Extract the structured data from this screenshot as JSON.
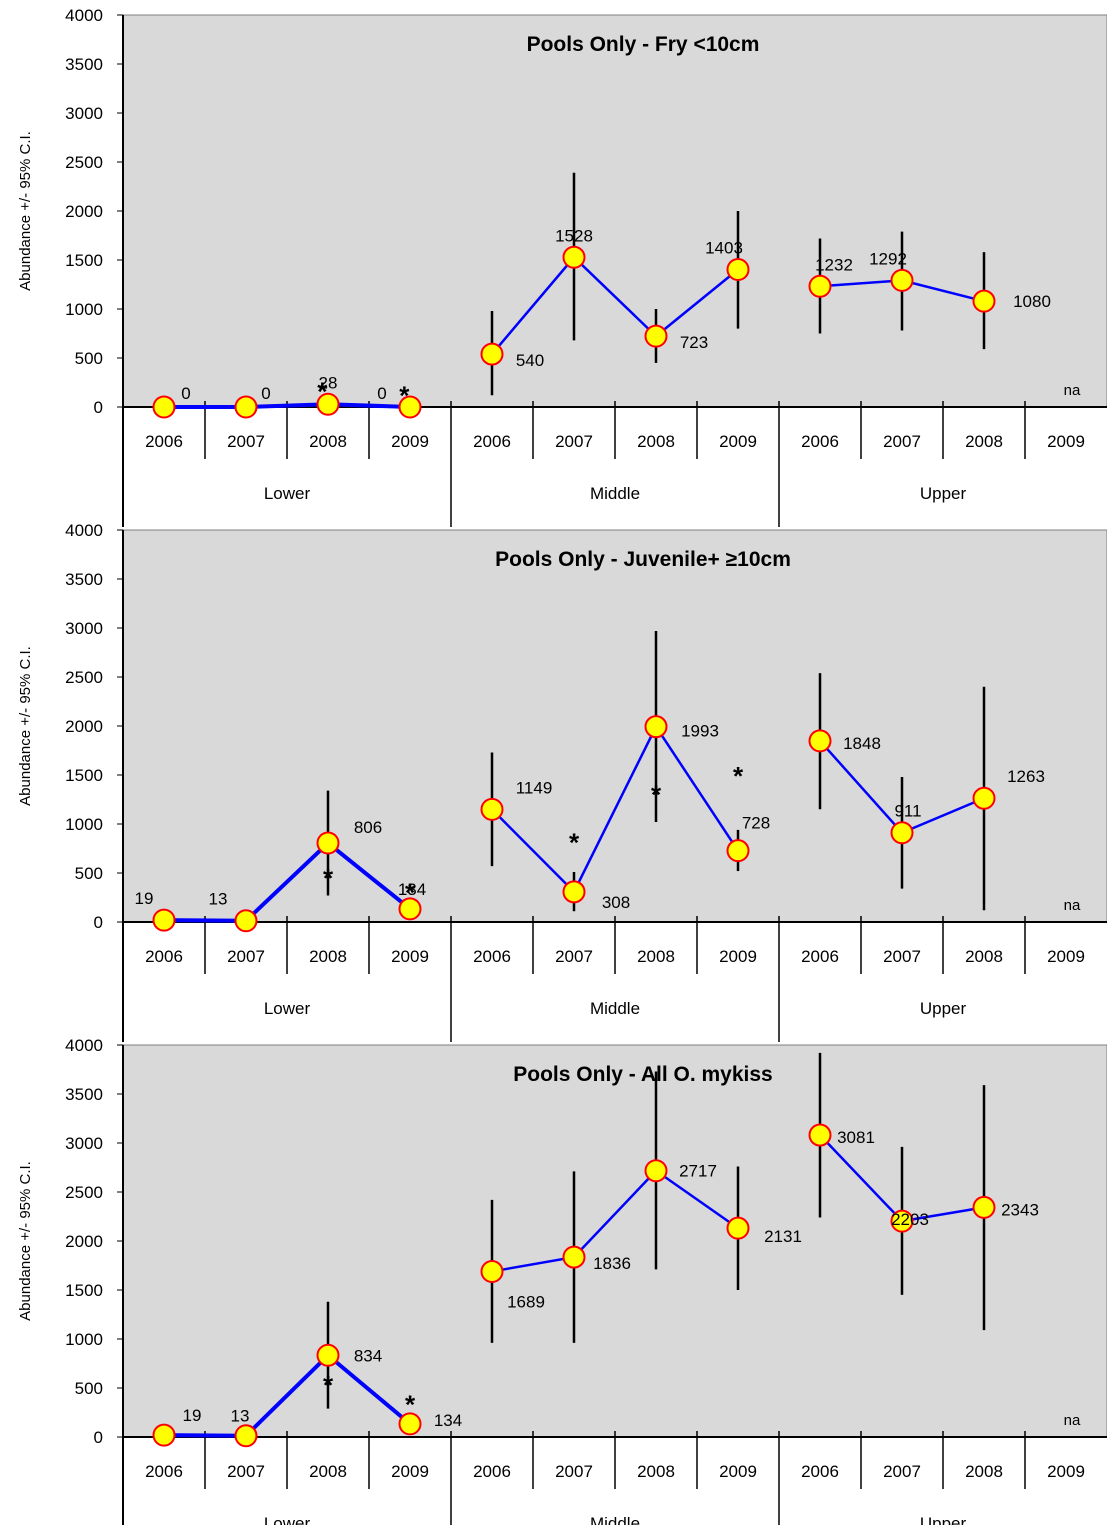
{
  "y_axis_label": "Abundance +/- 95% C.I.",
  "y_ticks": [
    "0",
    "500",
    "1000",
    "1500",
    "2000",
    "2500",
    "3000",
    "3500",
    "4000"
  ],
  "colors": {
    "plot_bg": "#d9d9d9",
    "line": "#0000ff",
    "marker_fill": "#ffff00",
    "marker_edge": "#ff0000",
    "asterisk": "#ff0000"
  },
  "chart_data": [
    {
      "type": "line",
      "title": "Pools Only - Fry <10cm",
      "ylabel": "Abundance +/- 95% C.I.",
      "ylim": [
        0,
        4000
      ],
      "grid": false,
      "groups": [
        {
          "name": "Lower",
          "years": [
            "2006",
            "2007",
            "2008",
            "2009"
          ]
        },
        {
          "name": "Middle",
          "years": [
            "2006",
            "2007",
            "2008",
            "2009"
          ]
        },
        {
          "name": "Upper",
          "years": [
            "2006",
            "2007",
            "2008",
            "2009"
          ]
        }
      ],
      "points": [
        {
          "group": "Lower",
          "year": "2006",
          "value": 0,
          "label": "0",
          "ci": null
        },
        {
          "group": "Lower",
          "year": "2007",
          "value": 0,
          "label": "0",
          "ci": null
        },
        {
          "group": "Lower",
          "year": "2008",
          "value": 28,
          "label": "28",
          "ci": null
        },
        {
          "group": "Lower",
          "year": "2009",
          "value": 0,
          "label": "0",
          "ci": null
        },
        {
          "group": "Middle",
          "year": "2006",
          "value": 540,
          "label": "540",
          "ci": [
            120,
            980
          ]
        },
        {
          "group": "Middle",
          "year": "2007",
          "value": 1528,
          "label": "1528",
          "ci": [
            680,
            2390
          ]
        },
        {
          "group": "Middle",
          "year": "2008",
          "value": 723,
          "label": "723",
          "ci": [
            450,
            1000
          ]
        },
        {
          "group": "Middle",
          "year": "2009",
          "value": 1403,
          "label": "1403",
          "ci": [
            800,
            2000
          ]
        },
        {
          "group": "Upper",
          "year": "2006",
          "value": 1232,
          "label": "1232",
          "ci": [
            750,
            1720
          ]
        },
        {
          "group": "Upper",
          "year": "2007",
          "value": 1292,
          "label": "1292",
          "ci": [
            780,
            1790
          ]
        },
        {
          "group": "Upper",
          "year": "2008",
          "value": 1080,
          "label": "1080",
          "ci": [
            590,
            1580
          ]
        }
      ],
      "na_label": "na",
      "significance_marks": [
        {
          "between": [
            "Lower 2007",
            "Lower 2008"
          ],
          "symbol": "*"
        },
        {
          "between": [
            "Lower 2008",
            "Lower 2009"
          ],
          "symbol": "*"
        }
      ]
    },
    {
      "type": "line",
      "title": "Pools Only - Juvenile+ ≥10cm",
      "ylabel": "Abundance +/- 95% C.I.",
      "ylim": [
        0,
        4000
      ],
      "grid": false,
      "groups": [
        {
          "name": "Lower",
          "years": [
            "2006",
            "2007",
            "2008",
            "2009"
          ]
        },
        {
          "name": "Middle",
          "years": [
            "2006",
            "2007",
            "2008",
            "2009"
          ]
        },
        {
          "name": "Upper",
          "years": [
            "2006",
            "2007",
            "2008",
            "2009"
          ]
        }
      ],
      "points": [
        {
          "group": "Lower",
          "year": "2006",
          "value": 19,
          "label": "19",
          "ci": null
        },
        {
          "group": "Lower",
          "year": "2007",
          "value": 13,
          "label": "13",
          "ci": null
        },
        {
          "group": "Lower",
          "year": "2008",
          "value": 806,
          "label": "806",
          "ci": [
            270,
            1340
          ]
        },
        {
          "group": "Lower",
          "year": "2009",
          "value": 134,
          "label": "134",
          "ci": null
        },
        {
          "group": "Middle",
          "year": "2006",
          "value": 1149,
          "label": "1149",
          "ci": [
            570,
            1730
          ]
        },
        {
          "group": "Middle",
          "year": "2007",
          "value": 308,
          "label": "308",
          "ci": [
            110,
            510
          ]
        },
        {
          "group": "Middle",
          "year": "2008",
          "value": 1993,
          "label": "1993",
          "ci": [
            1020,
            2970
          ]
        },
        {
          "group": "Middle",
          "year": "2009",
          "value": 728,
          "label": "728",
          "ci": [
            520,
            940
          ]
        },
        {
          "group": "Upper",
          "year": "2006",
          "value": 1848,
          "label": "1848",
          "ci": [
            1150,
            2540
          ]
        },
        {
          "group": "Upper",
          "year": "2007",
          "value": 911,
          "label": "911",
          "ci": [
            340,
            1480
          ]
        },
        {
          "group": "Upper",
          "year": "2008",
          "value": 1263,
          "label": "1263",
          "ci": [
            120,
            2400
          ]
        }
      ],
      "na_label": "na",
      "significance_marks": [
        {
          "between": [
            "Lower 2007",
            "Lower 2008"
          ],
          "symbol": "*"
        },
        {
          "between": [
            "Lower 2008",
            "Lower 2009"
          ],
          "symbol": "*"
        },
        {
          "between": [
            "Middle 2006",
            "Middle 2007"
          ],
          "symbol": "*"
        },
        {
          "between": [
            "Middle 2007",
            "Middle 2008"
          ],
          "symbol": "*"
        },
        {
          "between": [
            "Middle 2008",
            "Middle 2009"
          ],
          "symbol": "*"
        }
      ]
    },
    {
      "type": "line",
      "title": "Pools Only - All O. mykiss",
      "ylabel": "Abundance +/- 95% C.I.",
      "ylim": [
        0,
        4000
      ],
      "grid": false,
      "groups": [
        {
          "name": "Lower",
          "years": [
            "2006",
            "2007",
            "2008",
            "2009"
          ]
        },
        {
          "name": "Middle",
          "years": [
            "2006",
            "2007",
            "2008",
            "2009"
          ]
        },
        {
          "name": "Upper",
          "years": [
            "2006",
            "2007",
            "2008",
            "2009"
          ]
        }
      ],
      "points": [
        {
          "group": "Lower",
          "year": "2006",
          "value": 19,
          "label": "19",
          "ci": null
        },
        {
          "group": "Lower",
          "year": "2007",
          "value": 13,
          "label": "13",
          "ci": null
        },
        {
          "group": "Lower",
          "year": "2008",
          "value": 834,
          "label": "834",
          "ci": [
            290,
            1380
          ]
        },
        {
          "group": "Lower",
          "year": "2009",
          "value": 134,
          "label": "134",
          "ci": null
        },
        {
          "group": "Middle",
          "year": "2006",
          "value": 1689,
          "label": "1689",
          "ci": [
            960,
            2420
          ]
        },
        {
          "group": "Middle",
          "year": "2007",
          "value": 1836,
          "label": "1836",
          "ci": [
            960,
            2710
          ]
        },
        {
          "group": "Middle",
          "year": "2008",
          "value": 2717,
          "label": "2717",
          "ci": [
            1710,
            3730
          ]
        },
        {
          "group": "Middle",
          "year": "2009",
          "value": 2131,
          "label": "2131",
          "ci": [
            1500,
            2760
          ]
        },
        {
          "group": "Upper",
          "year": "2006",
          "value": 3081,
          "label": "3081",
          "ci": [
            2240,
            3920
          ]
        },
        {
          "group": "Upper",
          "year": "2007",
          "value": 2203,
          "label": "2203",
          "ci": [
            1450,
            2960
          ]
        },
        {
          "group": "Upper",
          "year": "2008",
          "value": 2343,
          "label": "2343",
          "ci": [
            1090,
            3590
          ]
        }
      ],
      "na_label": "na",
      "significance_marks": [
        {
          "between": [
            "Lower 2007",
            "Lower 2008"
          ],
          "symbol": "*"
        },
        {
          "between": [
            "Lower 2008",
            "Lower 2009"
          ],
          "symbol": "*"
        }
      ]
    }
  ]
}
